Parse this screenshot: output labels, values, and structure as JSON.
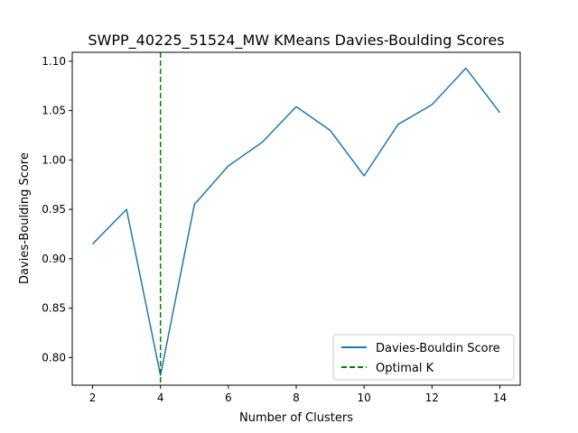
{
  "chart_data": {
    "type": "line",
    "title": "SWPP_40225_51524_MW KMeans Davies-Boulding Scores",
    "xlabel": "Number of Clusters",
    "ylabel": "Davies-Boulding Score",
    "xlim": [
      1.4,
      14.6
    ],
    "ylim": [
      0.772,
      1.109
    ],
    "x_ticks": [
      2,
      4,
      6,
      8,
      10,
      12,
      14
    ],
    "y_ticks": [
      0.8,
      0.85,
      0.9,
      0.95,
      1.0,
      1.05,
      1.1
    ],
    "grid": false,
    "legend_position": "lower-right",
    "series": [
      {
        "name": "Davies-Bouldin Score",
        "color": "#1f77b4",
        "style": "solid",
        "x": [
          2,
          3,
          4,
          5,
          6,
          7,
          8,
          9,
          10,
          11,
          12,
          13,
          14
        ],
        "y": [
          0.915,
          0.95,
          0.782,
          0.955,
          0.994,
          1.018,
          1.054,
          1.03,
          0.984,
          1.036,
          1.056,
          1.093,
          1.048
        ]
      }
    ],
    "vline": {
      "name": "Optimal K",
      "x": 4,
      "color": "#008000",
      "style": "dashed"
    }
  }
}
